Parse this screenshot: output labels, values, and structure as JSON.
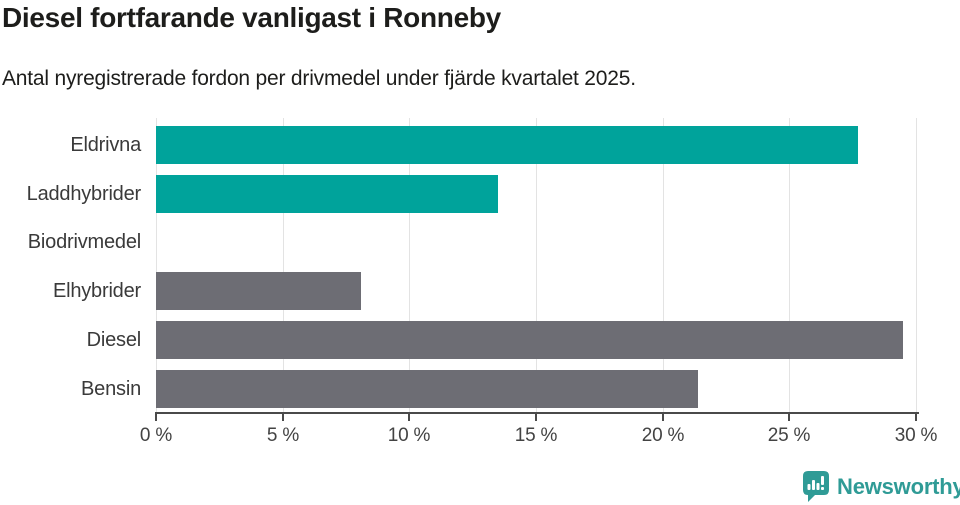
{
  "header": {
    "title": "Diesel fortfarande vanligast i Ronneby",
    "subtitle": "Antal nyregistrerade fordon per drivmedel under fjärde kvartalet 2025."
  },
  "chart_data": {
    "type": "bar",
    "orientation": "horizontal",
    "title": "Diesel fortfarande vanligast i Ronneby",
    "subtitle": "Antal nyregistrerade fordon per drivmedel under fjärde kvartalet 2025.",
    "categories": [
      "Eldrivna",
      "Laddhybrider",
      "Biodrivmedel",
      "Elhybrider",
      "Diesel",
      "Bensin"
    ],
    "values": [
      27.7,
      13.5,
      0,
      8.1,
      29.5,
      21.4
    ],
    "unit": "%",
    "bar_colors": [
      "#00a39b",
      "#00a39b",
      "#00a39b",
      "#6d6d74",
      "#6d6d74",
      "#6d6d74"
    ],
    "xlim": [
      0,
      30
    ],
    "tick_values": [
      0,
      5,
      10,
      15,
      20,
      25,
      30
    ],
    "tick_labels": [
      "0 %",
      "5 %",
      "10 %",
      "15 %",
      "20 %",
      "25 %",
      "30 %"
    ],
    "grid": true,
    "legend": false,
    "xlabel": "",
    "ylabel": ""
  },
  "colors": {
    "highlight_teal": "#00a39b",
    "neutral_gray": "#6d6d74",
    "gridline": "#e3e3e3",
    "axis": "#4a4a4a",
    "text_dark": "#1d1d1b",
    "label_gray": "#3a3a3a",
    "brand_teal": "#2f9b96"
  },
  "footer": {
    "brand": "Newsworthy",
    "icon": "newsworthy-chart-bubble-icon"
  }
}
